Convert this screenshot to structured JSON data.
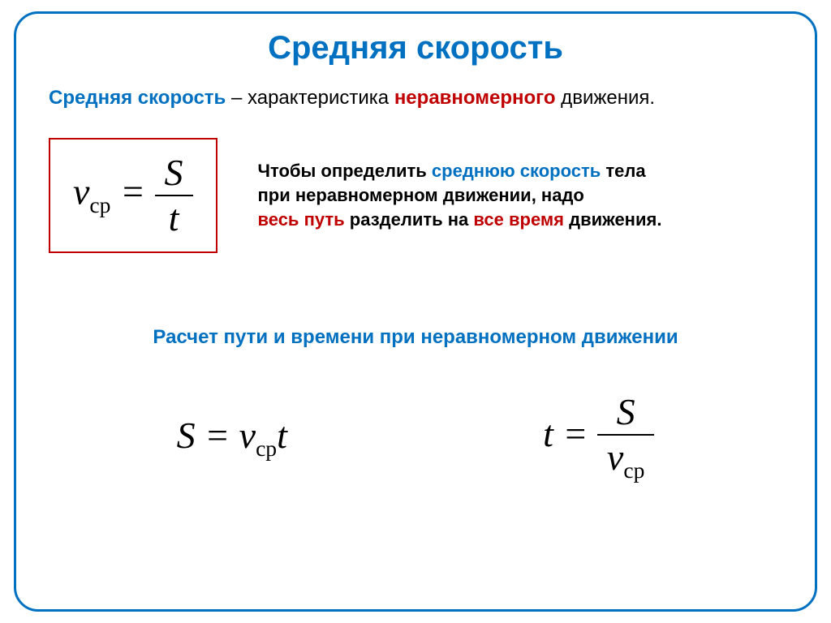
{
  "title": "Средняя скорость",
  "definition": {
    "term": "Средняя скорость",
    "dash": " – ",
    "mid": "характеристика ",
    "highlight": "неравномерного",
    "end": " движения."
  },
  "explain": {
    "line1a": "Чтобы определить ",
    "line1b": "среднюю скорость",
    "line1c": " тела",
    "line2": "при неравномерном движении, надо",
    "line3a": "весь путь",
    "line3b": " разделить на ",
    "line3c": "все время",
    "line3d": " движения."
  },
  "subtitle": "Расчет пути и времени при неравномерном движении",
  "formulas": {
    "v_label": "v",
    "v_sub": "ср",
    "s": "S",
    "t": "t",
    "eq": " = "
  },
  "colors": {
    "border": "#0070c0",
    "title": "#0070c0",
    "red": "#c00000",
    "text": "#000000"
  }
}
